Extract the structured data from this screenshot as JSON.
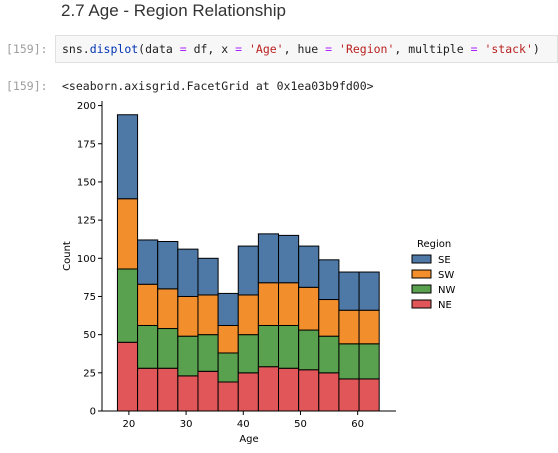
{
  "heading": "2.7 Age - Region Relationship",
  "cells": [
    {
      "prompt": "[159]:",
      "code": {
        "fn_prefix": "sns.",
        "fn_name": "displot",
        "args_before": "(data ",
        "eq1": "=",
        "arg_df": " df, x ",
        "eq2": "=",
        "str_age": " 'Age'",
        "arg_hue": ", hue ",
        "eq3": "=",
        "str_region": " 'Region'",
        "arg_multiple": ", multiple ",
        "eq4": "=",
        "str_stack": " 'stack'",
        "close": ")"
      }
    },
    {
      "prompt": "[159]:",
      "output": "<seaborn.axisgrid.FacetGrid at 0x1ea03b9fd00>"
    }
  ],
  "chart_data": {
    "type": "bar",
    "stacked": true,
    "xlabel": "Age",
    "ylabel": "Count",
    "xlim": [
      15.3,
      66.7
    ],
    "ylim": [
      0,
      203
    ],
    "xticks": [
      20,
      30,
      40,
      50,
      60
    ],
    "yticks": [
      0,
      25,
      50,
      75,
      100,
      125,
      150,
      175,
      200
    ],
    "bin_edges": [
      18,
      21.52,
      25.04,
      28.56,
      32.08,
      35.6,
      39.12,
      42.64,
      46.16,
      49.68,
      53.2,
      56.72,
      60.24,
      63.76
    ],
    "legend": {
      "title": "Region",
      "placement": "right"
    },
    "series": [
      {
        "name": "NE",
        "color": "#e15759",
        "values": [
          45,
          28,
          28,
          23,
          26,
          19,
          25,
          29,
          28,
          27,
          25,
          21,
          21
        ]
      },
      {
        "name": "NW",
        "color": "#59a14f",
        "values": [
          48,
          28,
          26,
          26,
          24,
          19,
          25,
          27,
          28,
          26,
          24,
          23,
          23
        ]
      },
      {
        "name": "SW",
        "color": "#f28e2b",
        "values": [
          46,
          27,
          26,
          26,
          26,
          18,
          26,
          28,
          28,
          28,
          24,
          22,
          22
        ]
      },
      {
        "name": "SE",
        "color": "#4e79a7",
        "values": [
          55,
          29,
          31,
          31,
          24,
          21,
          32,
          32,
          31,
          27,
          26,
          25,
          25
        ]
      }
    ],
    "legend_order": [
      "SE",
      "SW",
      "NW",
      "NE"
    ]
  }
}
